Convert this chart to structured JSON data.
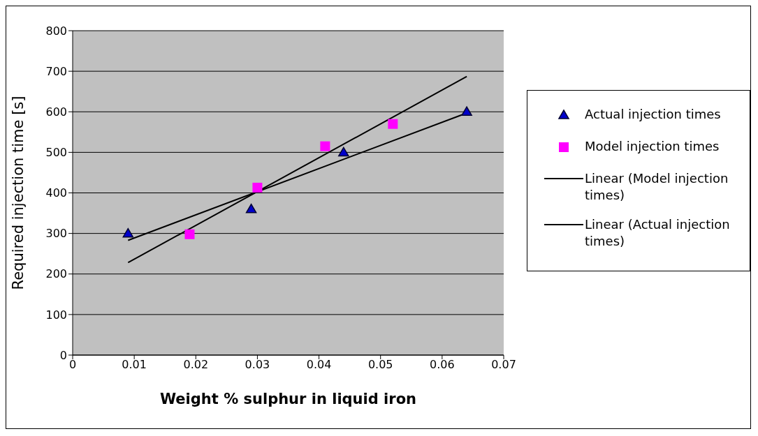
{
  "chart_data": {
    "type": "scatter",
    "xlabel": "Weight % sulphur in liquid iron",
    "ylabel": "Required injection time [s]",
    "xlim": [
      0,
      0.07
    ],
    "xticks": [
      0,
      0.01,
      0.02,
      0.03,
      0.04,
      0.05,
      0.06,
      0.07
    ],
    "ylim": [
      0,
      800
    ],
    "yticks": [
      0,
      100,
      200,
      300,
      400,
      500,
      600,
      700,
      800
    ],
    "grid": "y",
    "legend": "right",
    "series": [
      {
        "name": "Actual injection times",
        "marker": "triangle",
        "color": "#0000cc",
        "x": [
          0.009,
          0.029,
          0.044,
          0.064
        ],
        "values": [
          300,
          360,
          500,
          600
        ]
      },
      {
        "name": "Model injection times",
        "marker": "square",
        "color": "#ff00ff",
        "x": [
          0.019,
          0.03,
          0.041,
          0.052
        ],
        "values": [
          298,
          413,
          515,
          570
        ]
      },
      {
        "name": "Linear (Model injection times)",
        "type": "line",
        "marker": "none",
        "color": "#000000",
        "x": [
          0.009,
          0.064
        ],
        "values": [
          228,
          687
        ]
      },
      {
        "name": "Linear (Actual injection times)",
        "type": "line",
        "marker": "none",
        "color": "#000000",
        "x": [
          0.009,
          0.064
        ],
        "values": [
          283,
          597
        ]
      }
    ]
  }
}
